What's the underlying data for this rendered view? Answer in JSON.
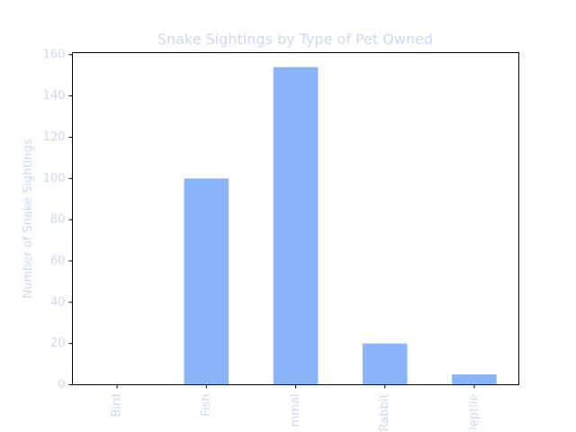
{
  "colors": {
    "bar": "#89b4fa",
    "text": "#cdd8f7",
    "axis": "#000000",
    "background": "#ffffff"
  },
  "chart_data": {
    "type": "bar",
    "title": "Snake Sightings by Type of Pet Owned",
    "xlabel": "",
    "ylabel": "Number of Snake Sightings",
    "categories": [
      "Bird",
      "Fish",
      "mmal",
      "Rabbit",
      "ieptile"
    ],
    "values": [
      0,
      100,
      154,
      20,
      5
    ],
    "ylim": [
      0,
      161
    ],
    "yticks": [
      0,
      20,
      40,
      60,
      80,
      100,
      120,
      140,
      160
    ],
    "grid": false,
    "legend": "none"
  }
}
